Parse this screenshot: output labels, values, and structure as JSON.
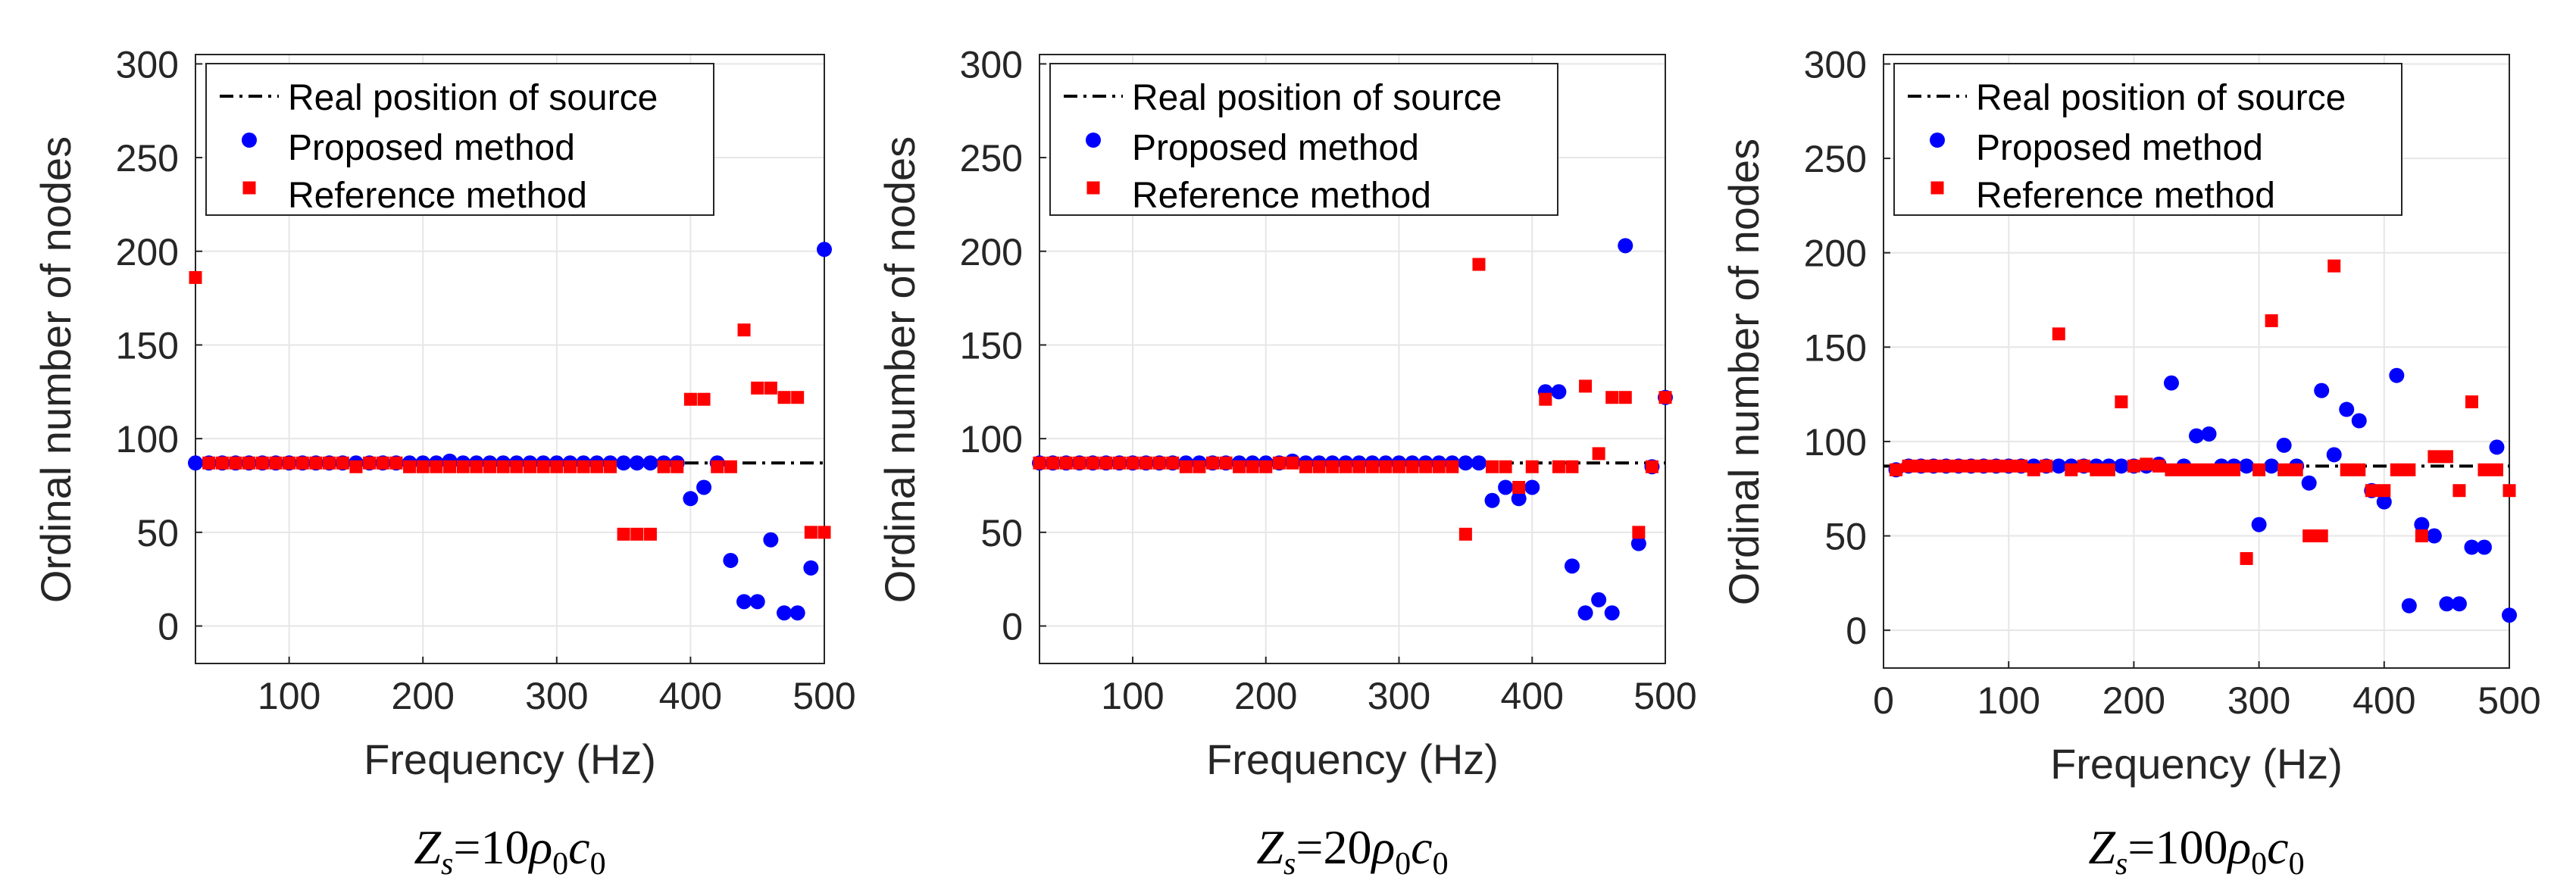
{
  "colors": {
    "proposed": "#0000ff",
    "reference": "#ff0000",
    "real_line": "#000000",
    "grid": "#e6e6e6",
    "axis": "#262626"
  },
  "chart_data": [
    {
      "type": "scatter",
      "xlabel": "Frequency (Hz)",
      "ylabel": "Ordinal number of nodes",
      "caption": {
        "pre": "Z",
        "sub": "s",
        "mid": "=10",
        "rho": "ρ",
        "zero1": "0",
        "c": "c",
        "zero2": "0"
      },
      "xlim": [
        30,
        500
      ],
      "ylim": [
        -20,
        305
      ],
      "xticks": [
        100,
        200,
        300,
        400,
        500
      ],
      "yticks": [
        0,
        50,
        100,
        150,
        200,
        250,
        300
      ],
      "grid": true,
      "legend_position": "top-left",
      "series": [
        {
          "name": "Real position of source",
          "kind": "line",
          "style": "dash-dot",
          "x": [
            30,
            500
          ],
          "y": [
            87,
            87
          ]
        },
        {
          "name": "Proposed method",
          "kind": "scatter",
          "marker": "circle",
          "x": [
            30,
            40,
            50,
            60,
            70,
            80,
            90,
            100,
            110,
            120,
            130,
            140,
            150,
            160,
            170,
            180,
            190,
            200,
            210,
            220,
            230,
            240,
            250,
            260,
            270,
            280,
            290,
            300,
            310,
            320,
            330,
            340,
            350,
            360,
            370,
            380,
            390,
            400,
            410,
            420,
            430,
            440,
            450,
            460,
            470,
            480,
            490,
            500
          ],
          "y": [
            87,
            87,
            87,
            87,
            87,
            87,
            87,
            87,
            87,
            87,
            87,
            87,
            87,
            87,
            87,
            87,
            87,
            87,
            87,
            88,
            87,
            87,
            87,
            87,
            87,
            87,
            87,
            87,
            87,
            87,
            87,
            87,
            87,
            87,
            87,
            87,
            87,
            68,
            74,
            87,
            35,
            13,
            13,
            46,
            7,
            7,
            31,
            201
          ]
        },
        {
          "name": "Reference method",
          "kind": "scatter",
          "marker": "square",
          "x": [
            30,
            40,
            50,
            60,
            70,
            80,
            90,
            100,
            110,
            120,
            130,
            140,
            150,
            160,
            170,
            180,
            190,
            200,
            210,
            220,
            230,
            240,
            250,
            260,
            270,
            280,
            290,
            300,
            310,
            320,
            330,
            340,
            350,
            360,
            370,
            380,
            390,
            400,
            410,
            420,
            430,
            440,
            450,
            460,
            470,
            480,
            490,
            500
          ],
          "y": [
            186,
            87,
            87,
            87,
            87,
            87,
            87,
            87,
            87,
            87,
            87,
            87,
            85,
            87,
            87,
            87,
            85,
            85,
            85,
            85,
            85,
            85,
            85,
            85,
            85,
            85,
            85,
            85,
            85,
            85,
            85,
            85,
            49,
            49,
            49,
            85,
            85,
            121,
            121,
            85,
            85,
            158,
            127,
            127,
            122,
            122,
            50,
            50
          ]
        }
      ]
    },
    {
      "type": "scatter",
      "xlabel": "Frequency (Hz)",
      "ylabel": "Ordinal number of nodes",
      "caption": {
        "pre": "Z",
        "sub": "s",
        "mid": "=20",
        "rho": "ρ",
        "zero1": "0",
        "c": "c",
        "zero2": "0"
      },
      "xlim": [
        30,
        500
      ],
      "ylim": [
        -20,
        305
      ],
      "xticks": [
        100,
        200,
        300,
        400,
        500
      ],
      "yticks": [
        0,
        50,
        100,
        150,
        200,
        250,
        300
      ],
      "grid": true,
      "legend_position": "top-left",
      "series": [
        {
          "name": "Real position of source",
          "kind": "line",
          "style": "dash-dot",
          "x": [
            30,
            500
          ],
          "y": [
            87,
            87
          ]
        },
        {
          "name": "Proposed method",
          "kind": "scatter",
          "marker": "circle",
          "x": [
            30,
            40,
            50,
            60,
            70,
            80,
            90,
            100,
            110,
            120,
            130,
            140,
            150,
            160,
            170,
            180,
            190,
            200,
            210,
            220,
            230,
            240,
            250,
            260,
            270,
            280,
            290,
            300,
            310,
            320,
            330,
            340,
            350,
            360,
            370,
            380,
            390,
            400,
            410,
            420,
            430,
            440,
            450,
            460,
            470,
            480,
            490,
            500
          ],
          "y": [
            87,
            87,
            87,
            87,
            87,
            87,
            87,
            87,
            87,
            87,
            87,
            87,
            87,
            87,
            87,
            87,
            87,
            87,
            87,
            88,
            87,
            87,
            87,
            87,
            87,
            87,
            87,
            87,
            87,
            87,
            87,
            87,
            87,
            87,
            67,
            74,
            68,
            74,
            125,
            125,
            32,
            7,
            14,
            7,
            203,
            44,
            85,
            122
          ]
        },
        {
          "name": "Reference method",
          "kind": "scatter",
          "marker": "square",
          "x": [
            30,
            40,
            50,
            60,
            70,
            80,
            90,
            100,
            110,
            120,
            130,
            140,
            150,
            160,
            170,
            180,
            190,
            200,
            210,
            220,
            230,
            240,
            250,
            260,
            270,
            280,
            290,
            300,
            310,
            320,
            330,
            340,
            350,
            360,
            370,
            380,
            390,
            400,
            410,
            420,
            430,
            440,
            450,
            460,
            470,
            480,
            490,
            500
          ],
          "y": [
            87,
            87,
            87,
            87,
            87,
            87,
            87,
            87,
            87,
            87,
            87,
            85,
            85,
            87,
            87,
            85,
            85,
            85,
            87,
            87,
            85,
            85,
            85,
            85,
            85,
            85,
            85,
            85,
            85,
            85,
            85,
            85,
            49,
            193,
            85,
            85,
            74,
            85,
            121,
            85,
            85,
            128,
            92,
            122,
            122,
            50,
            85,
            122
          ]
        }
      ]
    },
    {
      "type": "scatter",
      "xlabel": "Frequency (Hz)",
      "ylabel": "Ordinal number of nodes",
      "caption": {
        "pre": "Z",
        "sub": "s",
        "mid": "=100",
        "rho": "ρ",
        "zero1": "0",
        "c": "c",
        "zero2": "0"
      },
      "xlim": [
        0,
        500
      ],
      "ylim": [
        -20,
        305
      ],
      "xticks": [
        0,
        100,
        200,
        300,
        400,
        500
      ],
      "yticks": [
        0,
        50,
        100,
        150,
        200,
        250,
        300
      ],
      "grid": true,
      "legend_position": "top-left",
      "series": [
        {
          "name": "Real position of source",
          "kind": "line",
          "style": "dash-dot",
          "x": [
            0,
            500
          ],
          "y": [
            87,
            87
          ]
        },
        {
          "name": "Proposed method",
          "kind": "scatter",
          "marker": "circle",
          "x": [
            10,
            20,
            30,
            40,
            50,
            60,
            70,
            80,
            90,
            100,
            110,
            120,
            130,
            140,
            150,
            160,
            170,
            180,
            190,
            200,
            210,
            220,
            230,
            240,
            250,
            260,
            270,
            280,
            290,
            300,
            310,
            320,
            330,
            340,
            350,
            360,
            370,
            380,
            390,
            400,
            410,
            420,
            430,
            440,
            450,
            460,
            470,
            480,
            490,
            500
          ],
          "y": [
            85,
            87,
            87,
            87,
            87,
            87,
            87,
            87,
            87,
            87,
            87,
            87,
            87,
            87,
            87,
            87,
            87,
            87,
            87,
            87,
            87,
            88,
            131,
            87,
            103,
            104,
            87,
            87,
            87,
            56,
            87,
            98,
            87,
            78,
            127,
            93,
            117,
            111,
            74,
            68,
            135,
            13,
            56,
            50,
            14,
            14,
            44,
            44,
            97,
            8
          ]
        },
        {
          "name": "Reference method",
          "kind": "scatter",
          "marker": "square",
          "x": [
            10,
            20,
            30,
            40,
            50,
            60,
            70,
            80,
            90,
            100,
            110,
            120,
            130,
            140,
            150,
            160,
            170,
            180,
            190,
            200,
            210,
            220,
            230,
            240,
            250,
            260,
            270,
            280,
            290,
            300,
            310,
            320,
            330,
            340,
            350,
            360,
            370,
            380,
            390,
            400,
            410,
            420,
            430,
            440,
            450,
            460,
            470,
            480,
            490,
            500
          ],
          "y": [
            85,
            87,
            87,
            87,
            87,
            87,
            87,
            87,
            87,
            87,
            87,
            85,
            87,
            157,
            85,
            87,
            85,
            85,
            121,
            87,
            88,
            87,
            85,
            85,
            85,
            85,
            85,
            85,
            38,
            85,
            164,
            85,
            85,
            50,
            50,
            193,
            85,
            85,
            74,
            74,
            85,
            85,
            50,
            92,
            92,
            74,
            121,
            85,
            85,
            74
          ]
        }
      ]
    }
  ]
}
